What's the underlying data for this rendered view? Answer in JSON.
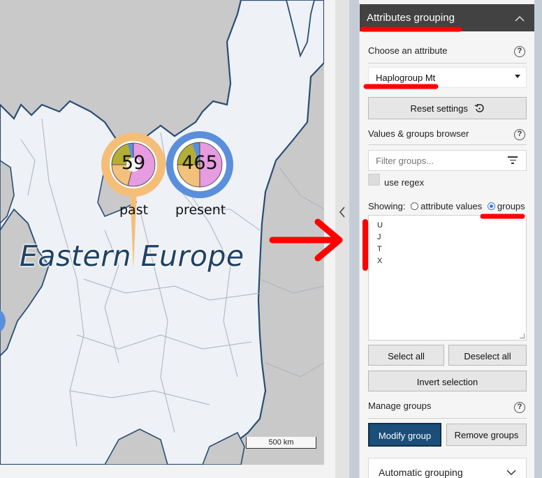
{
  "map": {
    "region_label": "Eastern Europe",
    "scale_label": "500 km",
    "clusters": [
      {
        "count": "59",
        "label": "past",
        "ring_color": "#f5be78"
      },
      {
        "count": "465",
        "label": "present",
        "ring_color": "#5b8fdc"
      }
    ],
    "colors": {
      "sea": "#c9c9c9",
      "land": "#eef1f6",
      "border": "#2a4d75",
      "pie_pink": "#e79be0",
      "pie_olive": "#b3ae35",
      "pie_orange": "#f2c17b",
      "pie_blue": "#5b8fdc"
    }
  },
  "splitter": {
    "toggle_icon": "chevron-left-icon"
  },
  "panel": {
    "title": "Attributes grouping",
    "header_chevron": "^",
    "choose_attribute": {
      "title": "Choose an attribute",
      "selected": "Haplogroup Mt"
    },
    "reset_button": "Reset settings",
    "browser": {
      "title": "Values & groups browser",
      "filter_placeholder": "Filter groups...",
      "use_regex": "use regex",
      "showing_label": "Showing:",
      "option_values": "attribute values",
      "option_groups": "groups",
      "groups": [
        "U",
        "J",
        "T",
        "X"
      ]
    },
    "select_all": "Select all",
    "deselect_all": "Deselect all",
    "invert_selection": "Invert selection",
    "manage": {
      "title": "Manage groups",
      "modify": "Modify group",
      "remove": "Remove groups"
    },
    "automatic_grouping": "Automatic grouping",
    "help_symbol": "?"
  },
  "annotations": {
    "color": "#ff0000"
  }
}
